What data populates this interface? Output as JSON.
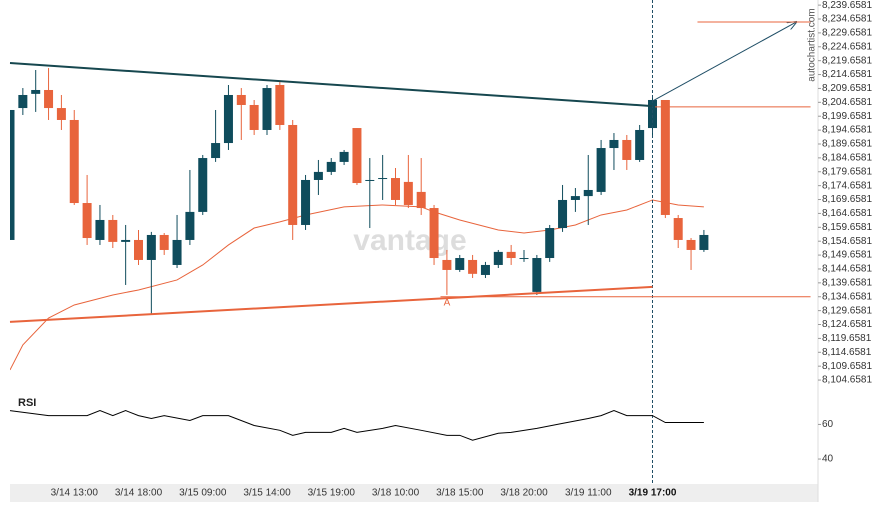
{
  "chart_data": {
    "type": "candlestick",
    "source": "autochartist.com",
    "watermark": "vantage",
    "up_color": "#0f4c5c",
    "down_color": "#e8643c",
    "categories": [
      null,
      null,
      null,
      null,
      null,
      "3/14 13:00",
      null,
      null,
      null,
      null,
      "3/14 18:00",
      null,
      null,
      null,
      null,
      "3/15 09:00",
      null,
      null,
      null,
      null,
      "3/15 14:00",
      null,
      null,
      null,
      null,
      "3/15 19:00",
      null,
      null,
      null,
      null,
      "3/18 10:00",
      null,
      null,
      null,
      null,
      "3/18 15:00",
      null,
      null,
      null,
      null,
      "3/18 20:00",
      null,
      null,
      null,
      null,
      "3/19 11:00",
      null,
      null,
      null,
      null,
      "3/19 17:00",
      null,
      null,
      null,
      null
    ],
    "open": [
      8155.1,
      8202.6,
      8207.7,
      8209.1,
      8202.6,
      8198.3,
      8168.4,
      8155.1,
      8162.3,
      8154.4,
      8155.1,
      8147.9,
      8156.9,
      8146.1,
      8155.1,
      8165.2,
      8184.6,
      8190.0,
      8207.3,
      8203.7,
      8194.7,
      8210.9,
      8196.5,
      8160.5,
      8176.7,
      8179.6,
      8183.2,
      8195.4,
      8176.7,
      8177.4,
      8177.4,
      8176.0,
      8172.4,
      8166.6,
      8147.9,
      8144.3,
      8147.9,
      8142.5,
      8146.1,
      8150.8,
      8148.6,
      8136.4,
      8148.6,
      8159.4,
      8169.5,
      8170.9,
      8172.4,
      8188.2,
      8191.1,
      8183.9,
      8195.4,
      8205.5,
      8163.0,
      8155.1,
      8151.5
    ],
    "high": [
      8201.9,
      8209.8,
      8216.3,
      8217.0,
      8207.3,
      8201.9,
      8178.5,
      8167.7,
      8164.1,
      8160.5,
      8158.7,
      8158.0,
      8157.6,
      8164.1,
      8180.3,
      8185.7,
      8201.9,
      8210.9,
      8209.8,
      8205.5,
      8210.9,
      8212.0,
      8198.3,
      8178.5,
      8183.9,
      8184.6,
      8187.5,
      8195.4,
      8184.6,
      8185.7,
      8181.0,
      8185.7,
      8184.6,
      8167.7,
      8151.5,
      8149.7,
      8149.7,
      8147.2,
      8151.5,
      8153.3,
      8151.5,
      8149.7,
      8160.5,
      8174.9,
      8173.8,
      8185.7,
      8191.1,
      8193.6,
      8192.9,
      8196.5,
      8207.3,
      8205.5,
      8164.1,
      8155.8,
      8158.7
    ],
    "low": [
      8155.1,
      8200.1,
      8201.2,
      8198.3,
      8194.7,
      8167.7,
      8153.3,
      8153.3,
      8152.2,
      8138.9,
      8146.1,
      8128.1,
      8149.7,
      8145.0,
      8153.3,
      8164.1,
      8183.2,
      8187.5,
      8191.1,
      8192.9,
      8192.9,
      8194.7,
      8155.1,
      8158.7,
      8171.3,
      8178.5,
      8182.1,
      8174.9,
      8159.4,
      8169.5,
      8167.7,
      8166.6,
      8164.1,
      8146.1,
      8135.3,
      8143.6,
      8141.4,
      8141.4,
      8145.0,
      8146.1,
      8147.2,
      8135.3,
      8147.2,
      8158.0,
      8165.2,
      8160.5,
      8171.3,
      8180.3,
      8180.3,
      8183.2,
      8192.9,
      8163.0,
      8152.2,
      8144.3,
      8150.8
    ],
    "close": [
      8201.9,
      8207.3,
      8209.1,
      8202.6,
      8198.3,
      8168.4,
      8155.8,
      8162.3,
      8154.4,
      8155.1,
      8147.9,
      8156.9,
      8151.5,
      8155.1,
      8165.2,
      8184.6,
      8190.0,
      8207.3,
      8203.7,
      8194.7,
      8209.8,
      8196.5,
      8160.5,
      8176.7,
      8179.6,
      8183.2,
      8186.8,
      8175.6,
      8176.7,
      8177.4,
      8169.5,
      8167.7,
      8166.6,
      8148.6,
      8144.3,
      8148.6,
      8142.9,
      8146.1,
      8150.8,
      8148.6,
      8148.6,
      8148.6,
      8159.4,
      8169.5,
      8170.9,
      8173.1,
      8188.2,
      8191.1,
      8183.9,
      8194.7,
      8205.5,
      8164.1,
      8155.1,
      8151.5,
      8156.9
    ],
    "ylim": [
      8101.8,
      8241.5
    ],
    "yticks": [
      {
        "value": 8239.6581,
        "label": "8,239.6581"
      },
      {
        "value": 8234.6581,
        "label": "8,234.6581"
      },
      {
        "value": 8229.6581,
        "label": "8,229.6581"
      },
      {
        "value": 8224.6581,
        "label": "8,224.6581"
      },
      {
        "value": 8219.6581,
        "label": "8,219.6581"
      },
      {
        "value": 8214.6581,
        "label": "8,214.6581"
      },
      {
        "value": 8209.6581,
        "label": "8,209.6581"
      },
      {
        "value": 8204.6581,
        "label": "8,204.6581"
      },
      {
        "value": 8199.6581,
        "label": "8,199.6581"
      },
      {
        "value": 8194.6581,
        "label": "8,194.6581"
      },
      {
        "value": 8189.6581,
        "label": "8,189.6581"
      },
      {
        "value": 8184.6581,
        "label": "8,184.6581"
      },
      {
        "value": 8179.6581,
        "label": "8,179.6581"
      },
      {
        "value": 8174.6581,
        "label": "8,174.6581"
      },
      {
        "value": 8169.6581,
        "label": "8,169.6581"
      },
      {
        "value": 8164.6581,
        "label": "8,164.6581"
      },
      {
        "value": 8159.6581,
        "label": "8,159.6581"
      },
      {
        "value": 8154.6581,
        "label": "8,154.6581"
      },
      {
        "value": 8149.6581,
        "label": "8,149.6581"
      },
      {
        "value": 8144.6581,
        "label": "8,144.6581"
      },
      {
        "value": 8139.6581,
        "label": "8,139.6581"
      },
      {
        "value": 8134.6581,
        "label": "8,134.6581"
      },
      {
        "value": 8129.6581,
        "label": "8,129.6581"
      },
      {
        "value": 8124.6581,
        "label": "8,124.6581"
      },
      {
        "value": 8119.6581,
        "label": "8,119.6581"
      },
      {
        "value": 8114.6581,
        "label": "8,114.6581"
      },
      {
        "value": 8109.6581,
        "label": "8,109.6581"
      },
      {
        "value": 8104.6581,
        "label": "8,104.6581"
      }
    ],
    "moving_average": {
      "color": "#e8643c",
      "x": [
        0,
        1,
        3,
        5,
        8,
        10,
        13,
        15,
        17,
        19,
        21,
        23,
        26,
        29,
        32,
        33,
        35,
        38,
        40,
        42,
        44,
        46,
        48,
        50,
        52,
        54
      ],
      "values": [
        8108.3,
        8117.3,
        8127.0,
        8131.7,
        8135.3,
        8137.1,
        8140.7,
        8146.1,
        8153.3,
        8159.4,
        8161.6,
        8164.1,
        8167.0,
        8167.7,
        8167.0,
        8165.2,
        8162.3,
        8158.7,
        8157.6,
        8158.7,
        8160.5,
        8164.1,
        8165.9,
        8169.5,
        8167.7,
        8167.0
      ]
    },
    "lines": [
      {
        "color": "#16474f",
        "width": 2,
        "x": [
          0,
          50
        ],
        "values": [
          8218.8,
          8203.3
        ]
      },
      {
        "color": "#e8643c",
        "width": 2,
        "x": [
          0,
          50
        ],
        "values": [
          8125.6,
          8138.2
        ]
      },
      {
        "color": "#1f4e66",
        "width": 1,
        "arrow": true,
        "x": [
          50,
          61.2
        ],
        "values": [
          8205.1,
          8233.6
        ]
      },
      {
        "color": "#e8643c",
        "width": 1,
        "x": [
          53.5,
          62.3
        ],
        "values": [
          8233.6,
          8233.6
        ]
      },
      {
        "color": "#e8643c",
        "width": 1,
        "x": [
          50.2,
          62.3
        ],
        "values": [
          8203.0,
          8203.0
        ]
      },
      {
        "color": "#e8643c",
        "width": 1,
        "x": [
          33.5,
          62.3
        ],
        "values": [
          8134.6581,
          8134.6581
        ]
      }
    ],
    "annotation": {
      "text": "A",
      "x": 34,
      "value": 8132.4,
      "color": "#e8643c"
    },
    "vline": {
      "x": 50,
      "color": "#1f4e66"
    },
    "rsi": {
      "name": "RSI",
      "color": "#000000",
      "ylim": [
        25,
        77
      ],
      "yticks": [
        60,
        40
      ],
      "x": [
        0,
        3,
        6,
        7,
        8,
        9,
        10,
        11,
        12,
        14,
        15,
        17,
        19,
        21,
        22,
        23,
        25,
        26,
        27,
        29,
        30,
        32,
        34,
        35,
        36,
        38,
        39,
        41,
        43,
        45,
        46,
        47,
        48,
        49,
        50,
        51,
        54
      ],
      "values": [
        68,
        65.1,
        65.1,
        68,
        65.1,
        68,
        65.1,
        63.4,
        65.1,
        62.3,
        65.1,
        65.1,
        59.4,
        56.6,
        53.7,
        55.4,
        55.4,
        57.7,
        55.4,
        57.7,
        59.4,
        56.6,
        53.7,
        53.7,
        50.9,
        54.9,
        55.4,
        57.7,
        60.6,
        63.4,
        65.1,
        68,
        65.1,
        65.1,
        65.1,
        61.1,
        61.1
      ]
    }
  }
}
